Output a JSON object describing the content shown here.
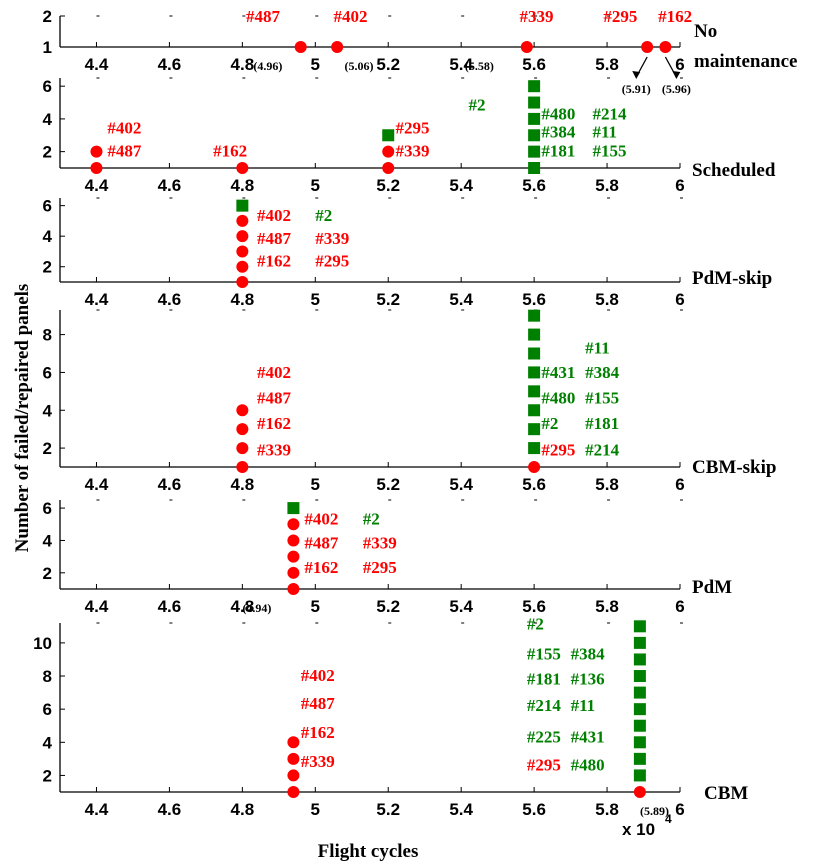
{
  "figure": {
    "xlabel": "Flight cycles",
    "ylabel": "Number of failed/repaired panels",
    "x_multiplier": "x 10",
    "x_multiplier_exp": "4",
    "colors": {
      "failed": "#ff0000",
      "repaired": "#008000",
      "axis": "#000000"
    }
  },
  "chart_data": [
    {
      "type": "scatter",
      "label": "No maintenance",
      "label_lines": [
        "No",
        "maintenance"
      ],
      "xlim": [
        4.3,
        6.0
      ],
      "ylim": [
        1,
        2
      ],
      "yticks": [
        1,
        2
      ],
      "xticks": [
        "4.4",
        "4.6",
        "4.8",
        "5",
        "5.2",
        "5.4",
        "5.6",
        "5.8",
        "6"
      ],
      "x_unit_multiplier": 10000,
      "series": [
        {
          "marker": "circle",
          "color": "#ff0000",
          "x": [
            4.96,
            5.06,
            5.58,
            5.91,
            5.96
          ],
          "y": [
            1,
            1,
            1,
            1,
            1
          ]
        }
      ],
      "annotations": [
        {
          "text": "#487",
          "color": "#ff0000",
          "x": 4.81,
          "y": 1.8
        },
        {
          "text": "#402",
          "color": "#ff0000",
          "x": 5.05,
          "y": 1.8
        },
        {
          "text": "#339",
          "color": "#ff0000",
          "x": 5.56,
          "y": 1.8
        },
        {
          "text": "#295",
          "color": "#ff0000",
          "x": 5.79,
          "y": 1.8
        },
        {
          "text": "#162",
          "color": "#ff0000",
          "x": 5.94,
          "y": 1.8
        }
      ],
      "value_labels": [
        {
          "text": "(4.96)",
          "x": 4.87,
          "y": 1.0
        },
        {
          "text": "(5.06)",
          "x": 5.12,
          "y": 1.0
        },
        {
          "text": "(5.58)",
          "x": 5.45,
          "y": 1.0
        },
        {
          "text": "(5.91)",
          "x": 5.88,
          "y": 0.1
        },
        {
          "text": "(5.96)",
          "x": 5.99,
          "y": 0.1
        }
      ]
    },
    {
      "type": "scatter",
      "label": "Scheduled",
      "xlim": [
        4.3,
        6.0
      ],
      "ylim": [
        1,
        6.5
      ],
      "yticks": [
        2,
        4,
        6
      ],
      "xticks": [
        "4.4",
        "4.6",
        "4.8",
        "5",
        "5.2",
        "5.4",
        "5.6",
        "5.8",
        "6"
      ],
      "series": [
        {
          "marker": "circle",
          "color": "#ff0000",
          "x": [
            4.4,
            4.4,
            4.8,
            5.2,
            5.2
          ],
          "y": [
            1,
            2,
            1,
            1,
            2
          ]
        },
        {
          "marker": "square",
          "color": "#008000",
          "x": [
            5.2,
            5.6,
            5.6,
            5.6,
            5.6,
            5.6,
            5.6
          ],
          "y": [
            3,
            1,
            2,
            3,
            4,
            5,
            6
          ]
        }
      ],
      "annotations": [
        {
          "text": "#402",
          "color": "#ff0000",
          "x": 4.43,
          "y": 3.1
        },
        {
          "text": "#487",
          "color": "#ff0000",
          "x": 4.43,
          "y": 1.7
        },
        {
          "text": "#162",
          "color": "#ff0000",
          "x": 4.72,
          "y": 1.7
        },
        {
          "text": "#2",
          "color": "#008000",
          "x": 5.42,
          "y": 4.5
        },
        {
          "text": "#295",
          "color": "#ff0000",
          "x": 5.22,
          "y": 3.1
        },
        {
          "text": "#339",
          "color": "#ff0000",
          "x": 5.22,
          "y": 1.7
        },
        {
          "text": "#480",
          "color": "#008000",
          "x": 5.62,
          "y": 3.95
        },
        {
          "text": "#214",
          "color": "#008000",
          "x": 5.76,
          "y": 3.95
        },
        {
          "text": "#384",
          "color": "#008000",
          "x": 5.62,
          "y": 2.85
        },
        {
          "text": "#11",
          "color": "#008000",
          "x": 5.76,
          "y": 2.85
        },
        {
          "text": "#181",
          "color": "#008000",
          "x": 5.62,
          "y": 1.7
        },
        {
          "text": "#155",
          "color": "#008000",
          "x": 5.76,
          "y": 1.7
        }
      ]
    },
    {
      "type": "scatter",
      "label": "PdM-skip",
      "xlim": [
        4.3,
        6.0
      ],
      "ylim": [
        1,
        6.5
      ],
      "yticks": [
        2,
        4,
        6
      ],
      "xticks": [
        "4.4",
        "4.6",
        "4.8",
        "5",
        "5.2",
        "5.4",
        "5.6",
        "5.8",
        "6"
      ],
      "series": [
        {
          "marker": "circle",
          "color": "#ff0000",
          "x": [
            4.8,
            4.8,
            4.8,
            4.8,
            4.8
          ],
          "y": [
            1,
            2,
            3,
            4,
            5
          ]
        },
        {
          "marker": "square",
          "color": "#008000",
          "x": [
            4.8
          ],
          "y": [
            6
          ]
        }
      ],
      "annotations": [
        {
          "text": "#402",
          "color": "#ff0000",
          "x": 4.84,
          "y": 5.0
        },
        {
          "text": "#2",
          "color": "#008000",
          "x": 5.0,
          "y": 5.0
        },
        {
          "text": "#487",
          "color": "#ff0000",
          "x": 4.84,
          "y": 3.5
        },
        {
          "text": "#339",
          "color": "#ff0000",
          "x": 5.0,
          "y": 3.5
        },
        {
          "text": "#162",
          "color": "#ff0000",
          "x": 4.84,
          "y": 2.0
        },
        {
          "text": "#295",
          "color": "#ff0000",
          "x": 5.0,
          "y": 2.0
        }
      ]
    },
    {
      "type": "scatter",
      "label": "CBM-skip",
      "xlim": [
        4.3,
        6.0
      ],
      "ylim": [
        1,
        9.3
      ],
      "yticks": [
        2,
        4,
        6,
        8
      ],
      "xticks": [
        "4.4",
        "4.6",
        "4.8",
        "5",
        "5.2",
        "5.4",
        "5.6",
        "5.8",
        "6"
      ],
      "series": [
        {
          "marker": "circle",
          "color": "#ff0000",
          "x": [
            4.8,
            4.8,
            4.8,
            4.8,
            5.6
          ],
          "y": [
            1,
            2,
            3,
            4,
            1
          ]
        },
        {
          "marker": "square",
          "color": "#008000",
          "x": [
            5.6,
            5.6,
            5.6,
            5.6,
            5.6,
            5.6,
            5.6,
            5.6
          ],
          "y": [
            2,
            3,
            4,
            5,
            6,
            7,
            8,
            9
          ]
        }
      ],
      "annotations": [
        {
          "text": "#402",
          "color": "#ff0000",
          "x": 4.84,
          "y": 5.7
        },
        {
          "text": "#487",
          "color": "#ff0000",
          "x": 4.84,
          "y": 4.35
        },
        {
          "text": "#162",
          "color": "#ff0000",
          "x": 4.84,
          "y": 3.0
        },
        {
          "text": "#339",
          "color": "#ff0000",
          "x": 4.84,
          "y": 1.6
        },
        {
          "text": "#11",
          "color": "#008000",
          "x": 5.74,
          "y": 7.0
        },
        {
          "text": "#431",
          "color": "#008000",
          "x": 5.62,
          "y": 5.7
        },
        {
          "text": "#384",
          "color": "#008000",
          "x": 5.74,
          "y": 5.7
        },
        {
          "text": "#480",
          "color": "#008000",
          "x": 5.62,
          "y": 4.35
        },
        {
          "text": "#155",
          "color": "#008000",
          "x": 5.74,
          "y": 4.35
        },
        {
          "text": "#2",
          "color": "#008000",
          "x": 5.62,
          "y": 3.0
        },
        {
          "text": "#181",
          "color": "#008000",
          "x": 5.74,
          "y": 3.0
        },
        {
          "text": "#295",
          "color": "#ff0000",
          "x": 5.62,
          "y": 1.6
        },
        {
          "text": "#214",
          "color": "#008000",
          "x": 5.74,
          "y": 1.6
        }
      ]
    },
    {
      "type": "scatter",
      "label": "PdM",
      "xlim": [
        4.3,
        6.0
      ],
      "ylim": [
        1,
        6.5
      ],
      "yticks": [
        2,
        4,
        6
      ],
      "xticks": [
        "4.4",
        "4.6",
        "4.8",
        "5",
        "5.2",
        "5.4",
        "5.6",
        "5.8",
        "6"
      ],
      "series": [
        {
          "marker": "circle",
          "color": "#ff0000",
          "x": [
            4.94,
            4.94,
            4.94,
            4.94,
            4.94
          ],
          "y": [
            1,
            2,
            3,
            4,
            5
          ]
        },
        {
          "marker": "square",
          "color": "#008000",
          "x": [
            4.94
          ],
          "y": [
            6
          ]
        }
      ],
      "annotations": [
        {
          "text": "#402",
          "color": "#ff0000",
          "x": 4.97,
          "y": 5.0
        },
        {
          "text": "#2",
          "color": "#008000",
          "x": 5.13,
          "y": 5.0
        },
        {
          "text": "#487",
          "color": "#ff0000",
          "x": 4.97,
          "y": 3.5
        },
        {
          "text": "#339",
          "color": "#ff0000",
          "x": 5.13,
          "y": 3.5
        },
        {
          "text": "#162",
          "color": "#ff0000",
          "x": 4.97,
          "y": 2.0
        },
        {
          "text": "#295",
          "color": "#ff0000",
          "x": 5.13,
          "y": 2.0
        }
      ],
      "value_labels": [
        {
          "text": "(4.94)",
          "x": 4.84,
          "y": 1.0
        }
      ]
    },
    {
      "type": "scatter",
      "label": "CBM",
      "xlim": [
        4.3,
        6.0
      ],
      "ylim": [
        1,
        11.2
      ],
      "yticks": [
        2,
        4,
        6,
        8,
        10
      ],
      "xticks": [
        "4.4",
        "4.6",
        "4.8",
        "5",
        "5.2",
        "5.4",
        "5.6",
        "5.8",
        "6"
      ],
      "series": [
        {
          "marker": "circle",
          "color": "#ff0000",
          "x": [
            4.94,
            4.94,
            4.94,
            4.94,
            5.89
          ],
          "y": [
            1,
            2,
            3,
            4,
            1
          ]
        },
        {
          "marker": "square",
          "color": "#008000",
          "x": [
            5.89,
            5.89,
            5.89,
            5.89,
            5.89,
            5.89,
            5.89,
            5.89,
            5.89,
            5.89
          ],
          "y": [
            2,
            3,
            4,
            5,
            6,
            7,
            8,
            9,
            10,
            11
          ]
        }
      ],
      "annotations": [
        {
          "text": "#402",
          "color": "#ff0000",
          "x": 4.96,
          "y": 7.7
        },
        {
          "text": "#487",
          "color": "#ff0000",
          "x": 4.96,
          "y": 6.0
        },
        {
          "text": "#162",
          "color": "#ff0000",
          "x": 4.96,
          "y": 4.25
        },
        {
          "text": "#339",
          "color": "#ff0000",
          "x": 4.96,
          "y": 2.5
        },
        {
          "text": "#2",
          "color": "#008000",
          "x": 5.58,
          "y": 10.8
        },
        {
          "text": "#155",
          "color": "#008000",
          "x": 5.58,
          "y": 9.0
        },
        {
          "text": "#384",
          "color": "#008000",
          "x": 5.7,
          "y": 9.0
        },
        {
          "text": "#181",
          "color": "#008000",
          "x": 5.58,
          "y": 7.5
        },
        {
          "text": "#136",
          "color": "#008000",
          "x": 5.7,
          "y": 7.5
        },
        {
          "text": "#214",
          "color": "#008000",
          "x": 5.58,
          "y": 5.9
        },
        {
          "text": "#11",
          "color": "#008000",
          "x": 5.7,
          "y": 5.9
        },
        {
          "text": "#225",
          "color": "#008000",
          "x": 5.58,
          "y": 4.0
        },
        {
          "text": "#431",
          "color": "#008000",
          "x": 5.7,
          "y": 4.0
        },
        {
          "text": "#295",
          "color": "#ff0000",
          "x": 5.58,
          "y": 2.3
        },
        {
          "text": "#480",
          "color": "#008000",
          "x": 5.7,
          "y": 2.3
        }
      ],
      "value_labels": [
        {
          "text": "(5.89)",
          "x": 5.93,
          "y": 1.0
        }
      ]
    }
  ]
}
